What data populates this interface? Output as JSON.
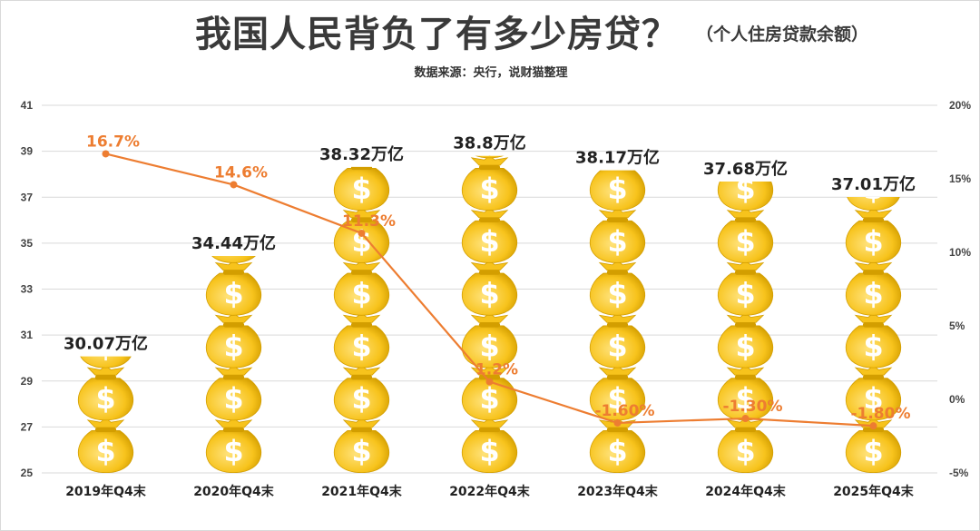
{
  "title": "我国人民背负了有多少房贷？",
  "subtitle": "（个人住房贷款余额）",
  "source": "数据来源：央行，说财猫整理",
  "colors": {
    "line": "#ed7d31",
    "bag": "#f7c31c",
    "bag_dark": "#d39e00",
    "grid": "#d9d9d9"
  },
  "icons": {
    "bar_unit": "money-bag-icon"
  },
  "chart_data": {
    "type": "bar",
    "title": "我国人民背负了有多少房贷？",
    "subtitle": "（个人住房贷款余额）",
    "categories": [
      "2019年Q4末",
      "2020年Q4末",
      "2021年Q4末",
      "2022年Q4末",
      "2023年Q4末",
      "2024年Q4末",
      "2025年Q4末"
    ],
    "series": [
      {
        "type": "bar",
        "axis": "left",
        "values": [
          30.07,
          34.44,
          38.32,
          38.8,
          38.17,
          37.68,
          37.01
        ],
        "labels": [
          "30.07万亿",
          "34.44万亿",
          "38.32万亿",
          "38.8万亿",
          "38.17万亿",
          "37.68万亿",
          "37.01万亿"
        ]
      },
      {
        "type": "line",
        "axis": "right",
        "values": [
          16.7,
          14.6,
          11.3,
          1.2,
          -1.6,
          -1.3,
          -1.8
        ],
        "labels": [
          "16.7%",
          "14.6%",
          "11.3%",
          "1.2%",
          "-1.60%",
          "-1.30%",
          "-1.80%"
        ]
      }
    ],
    "y_left": {
      "min": 25,
      "max": 41,
      "ticks": [
        "25",
        "27",
        "29",
        "31",
        "33",
        "35",
        "37",
        "39",
        "41"
      ]
    },
    "y_right": {
      "min": -5,
      "max": 20,
      "ticks": [
        "-5%",
        "0%",
        "5%",
        "10%",
        "15%",
        "20%"
      ]
    },
    "grid": true,
    "legend": "none"
  }
}
